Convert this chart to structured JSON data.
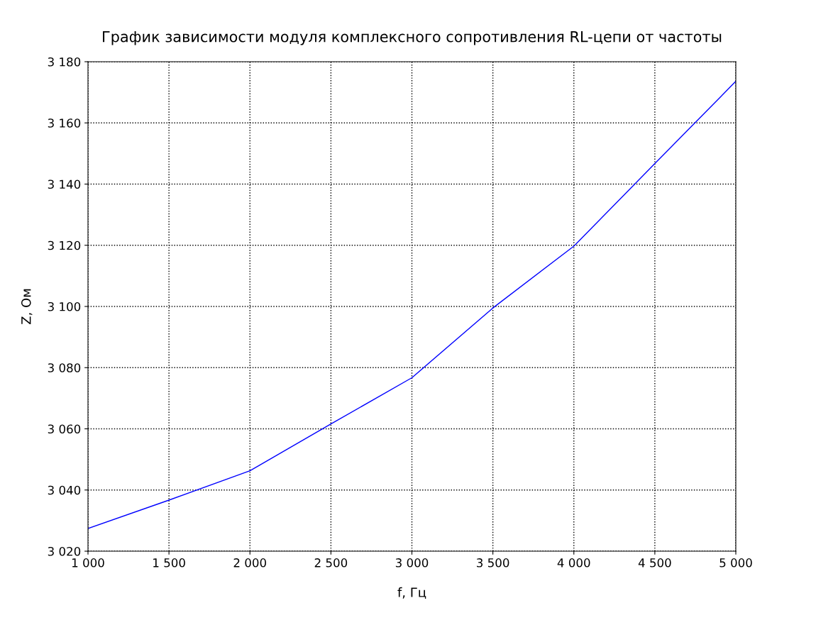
{
  "chart_data": {
    "type": "line",
    "title": "График зависимости модуля комплексного сопротивления RL-цепи от частоты",
    "xlabel": "f, Гц",
    "ylabel": "Z, Ом",
    "x": [
      1000,
      1500,
      2000,
      2500,
      3000,
      3500,
      4000,
      4500,
      5000
    ],
    "series": [
      {
        "color": "#0000ff",
        "values": [
          3027.4,
          3036.7,
          3046.3,
          3061.6,
          3076.7,
          3099.5,
          3119.7,
          3146.7,
          3173.6
        ]
      }
    ],
    "xlim": [
      1000,
      5000
    ],
    "xticks": [
      {
        "value": 1000,
        "label": "1 000"
      },
      {
        "value": 1500,
        "label": "1 500"
      },
      {
        "value": 2000,
        "label": "2 000"
      },
      {
        "value": 2500,
        "label": "2 500"
      },
      {
        "value": 3000,
        "label": "3 000"
      },
      {
        "value": 3500,
        "label": "3 500"
      },
      {
        "value": 4000,
        "label": "4 000"
      },
      {
        "value": 4500,
        "label": "4 500"
      },
      {
        "value": 5000,
        "label": "5 000"
      }
    ],
    "ylim": [
      3020,
      3180
    ],
    "yticks": [
      {
        "value": 3020,
        "label": "3 020"
      },
      {
        "value": 3040,
        "label": "3 040"
      },
      {
        "value": 3060,
        "label": "3 060"
      },
      {
        "value": 3080,
        "label": "3 080"
      },
      {
        "value": 3100,
        "label": "3 100"
      },
      {
        "value": 3120,
        "label": "3 120"
      },
      {
        "value": 3140,
        "label": "3 140"
      },
      {
        "value": 3160,
        "label": "3 160"
      },
      {
        "value": 3180,
        "label": "3 180"
      }
    ],
    "grid": true,
    "line_style": "solid",
    "marker": "none"
  }
}
